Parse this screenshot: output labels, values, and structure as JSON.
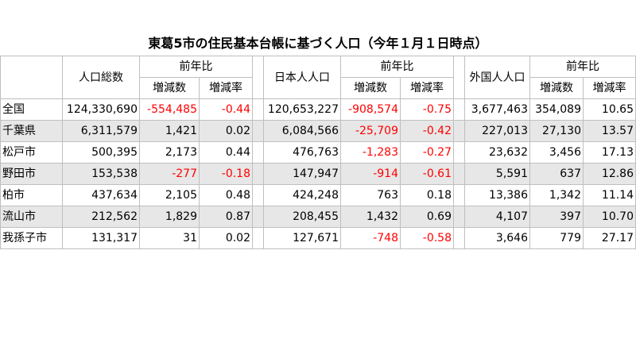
{
  "title": "東葛5市の住民基本台帳に基づく人口（今年１月１日時点）",
  "headers": {
    "total": "人口総数",
    "japanese": "日本人人口",
    "foreign": "外国人人口",
    "yoy": "前年比",
    "change": "増減数",
    "rate": "増減率"
  },
  "rows": [
    {
      "name": "全国",
      "total": "124,330,690",
      "t_chg": "-554,485",
      "t_rate": "-0.44",
      "jp": "120,653,227",
      "jp_chg": "-908,574",
      "jp_rate": "-0.75",
      "fr": "3,677,463",
      "fr_chg": "354,089",
      "fr_rate": "10.65"
    },
    {
      "name": "千葉県",
      "total": "6,311,579",
      "t_chg": "1,421",
      "t_rate": "0.02",
      "jp": "6,084,566",
      "jp_chg": "-25,709",
      "jp_rate": "-0.42",
      "fr": "227,013",
      "fr_chg": "27,130",
      "fr_rate": "13.57"
    },
    {
      "name": "松戸市",
      "total": "500,395",
      "t_chg": "2,173",
      "t_rate": "0.44",
      "jp": "476,763",
      "jp_chg": "-1,283",
      "jp_rate": "-0.27",
      "fr": "23,632",
      "fr_chg": "3,456",
      "fr_rate": "17.13"
    },
    {
      "name": "野田市",
      "total": "153,538",
      "t_chg": "-277",
      "t_rate": "-0.18",
      "jp": "147,947",
      "jp_chg": "-914",
      "jp_rate": "-0.61",
      "fr": "5,591",
      "fr_chg": "637",
      "fr_rate": "12.86"
    },
    {
      "name": "柏市",
      "total": "437,634",
      "t_chg": "2,105",
      "t_rate": "0.48",
      "jp": "424,248",
      "jp_chg": "763",
      "jp_rate": "0.18",
      "fr": "13,386",
      "fr_chg": "1,342",
      "fr_rate": "11.14"
    },
    {
      "name": "流山市",
      "total": "212,562",
      "t_chg": "1,829",
      "t_rate": "0.87",
      "jp": "208,455",
      "jp_chg": "1,432",
      "jp_rate": "0.69",
      "fr": "4,107",
      "fr_chg": "397",
      "fr_rate": "10.70"
    },
    {
      "name": "我孫子市",
      "total": "131,317",
      "t_chg": "31",
      "t_rate": "0.02",
      "jp": "127,671",
      "jp_chg": "-748",
      "jp_rate": "-0.58",
      "fr": "3,646",
      "fr_chg": "779",
      "fr_rate": "27.17"
    }
  ],
  "colors": {
    "negative": "#ff0000",
    "shade": "#e7e7e7",
    "grid": "#bfbfbf"
  }
}
